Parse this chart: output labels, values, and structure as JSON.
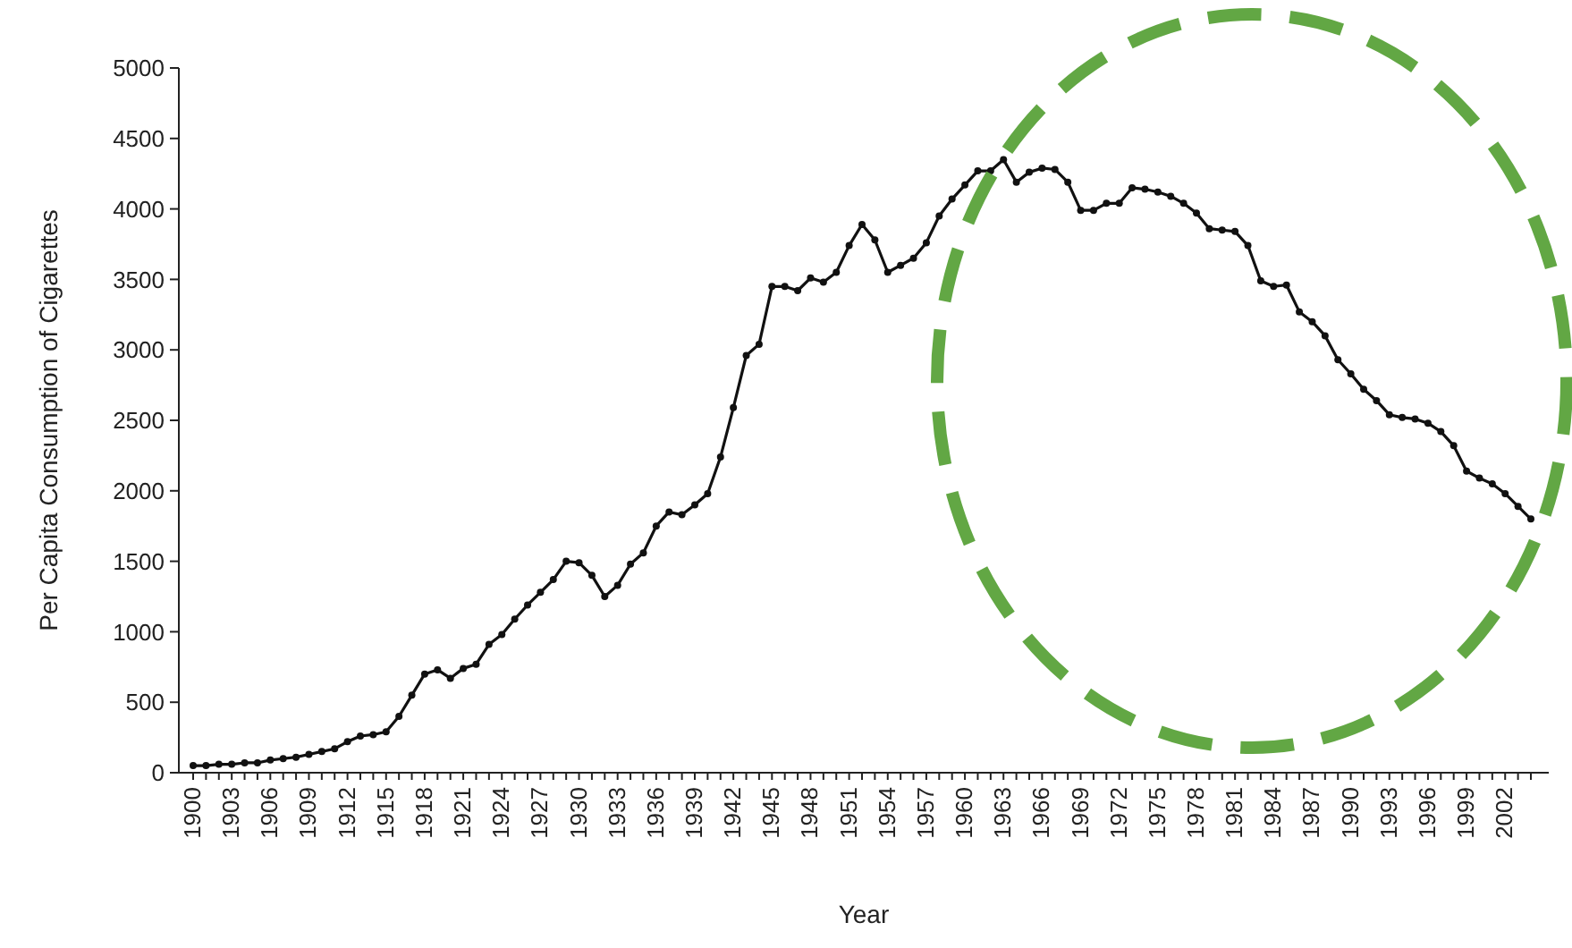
{
  "chart_data": {
    "type": "line",
    "xlabel": "Year",
    "ylabel": "Per Capita Consumption of Cigarettes",
    "categories": [
      "1900",
      null,
      null,
      "1903",
      null,
      null,
      "1906",
      null,
      null,
      "1909",
      null,
      null,
      "1912",
      null,
      null,
      "1915",
      null,
      null,
      "1918",
      null,
      null,
      "1921",
      null,
      null,
      "1924",
      null,
      null,
      "1927",
      null,
      null,
      "1930",
      null,
      null,
      "1933",
      null,
      null,
      "1936",
      null,
      null,
      "1939",
      null,
      null,
      "1942",
      null,
      null,
      "1945",
      null,
      null,
      "1948",
      null,
      null,
      "1951",
      null,
      null,
      "1954",
      null,
      null,
      "1957",
      null,
      null,
      "1960",
      null,
      null,
      "1963",
      null,
      null,
      "1966",
      null,
      null,
      "1969",
      null,
      null,
      "1972",
      null,
      null,
      "1975",
      null,
      null,
      "1978",
      null,
      null,
      "1981",
      null,
      null,
      "1984",
      null,
      null,
      "1987",
      null,
      null,
      "1990",
      null,
      null,
      "1993",
      null,
      null,
      "1996",
      null,
      null,
      "1999",
      null,
      null,
      "2002",
      null,
      null
    ],
    "series": [
      {
        "color": "#111111",
        "values": [
          50,
          50,
          60,
          60,
          70,
          70,
          90,
          100,
          110,
          130,
          150,
          170,
          220,
          260,
          270,
          290,
          400,
          550,
          700,
          730,
          670,
          740,
          770,
          910,
          980,
          1090,
          1190,
          1280,
          1370,
          1500,
          1490,
          1400,
          1250,
          1330,
          1480,
          1560,
          1750,
          1850,
          1830,
          1900,
          1980,
          2240,
          2590,
          2960,
          3040,
          3450,
          3450,
          3420,
          3510,
          3480,
          3550,
          3740,
          3890,
          3780,
          3550,
          3600,
          3650,
          3760,
          3950,
          4070,
          4170,
          4270,
          4270,
          4350,
          4190,
          4260,
          4290,
          4280,
          4190,
          3990,
          3990,
          4040,
          4040,
          4150,
          4140,
          4120,
          4090,
          4040,
          3970,
          3860,
          3850,
          3840,
          3740,
          3490,
          3450,
          3460,
          3270,
          3200,
          3100,
          2930,
          2830,
          2720,
          2640,
          2540,
          2520,
          2510,
          2480,
          2420,
          2320,
          2140,
          2090,
          2050,
          1980,
          1890,
          1800
        ]
      }
    ],
    "ylim": [
      0,
      5000
    ],
    "yticks": [
      0,
      500,
      1000,
      1500,
      2000,
      2500,
      3000,
      3500,
      4000,
      4500,
      5000
    ],
    "grid": false,
    "marker": "circle",
    "line_style": "solid"
  }
}
